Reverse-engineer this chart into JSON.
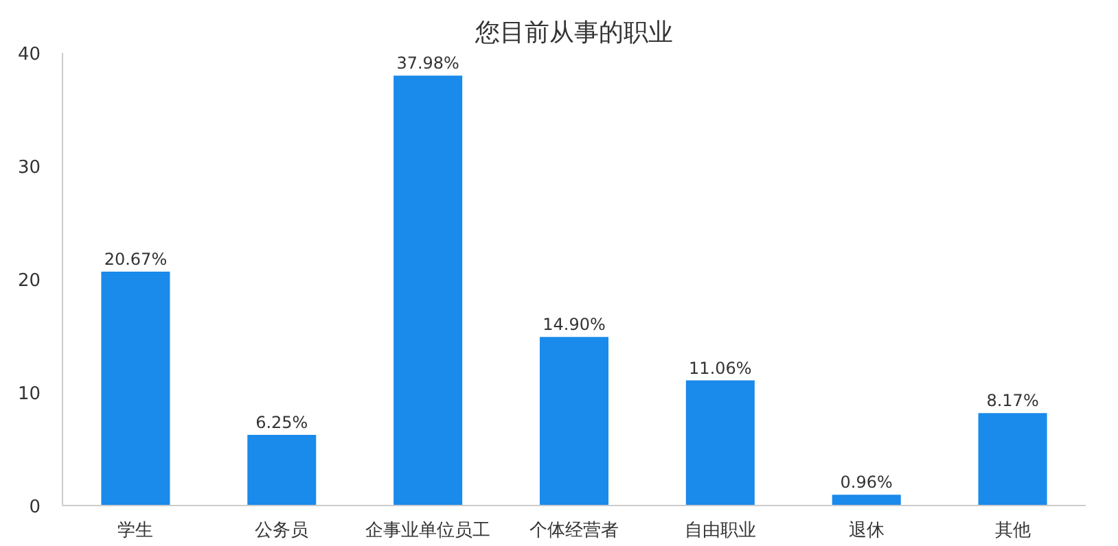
{
  "chart_data": {
    "type": "bar",
    "title": "您目前从事的职业",
    "categories": [
      "学生",
      "公务员",
      "企事业单位员工",
      "个体经营者",
      "自由职业",
      "退休",
      "其他"
    ],
    "values": [
      20.67,
      6.25,
      37.98,
      14.9,
      11.06,
      0.96,
      8.17
    ],
    "value_labels": [
      "20.67%",
      "6.25%",
      "37.98%",
      "14.90%",
      "11.06%",
      "0.96%",
      "8.17%"
    ],
    "color": "#1a8aeb",
    "ylim": [
      0,
      40
    ],
    "yticks": [
      0,
      10,
      20,
      30,
      40
    ],
    "grid": false
  }
}
